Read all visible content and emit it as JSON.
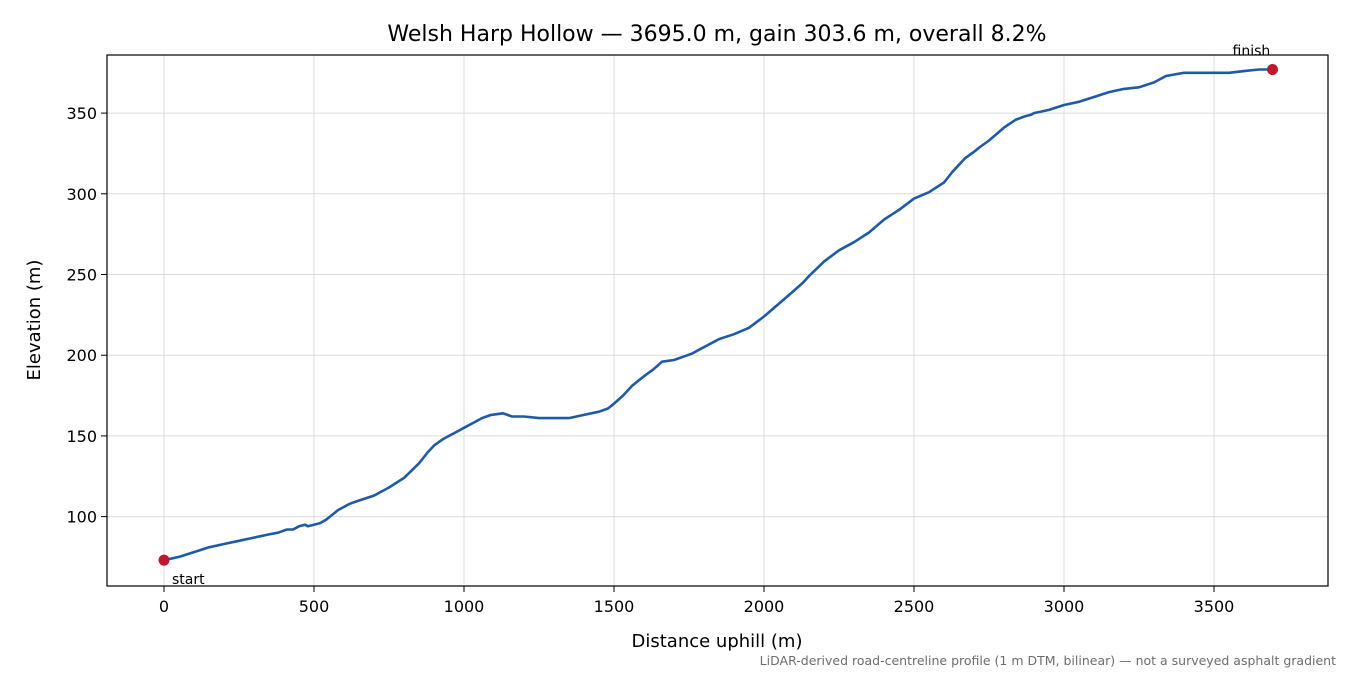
{
  "chart_data": {
    "type": "line",
    "title": "Welsh Harp Hollow — 3695.0 m, gain 303.6 m, overall 8.2%",
    "xlabel": "Distance uphill (m)",
    "ylabel": "Elevation (m)",
    "xlim": [
      -190,
      3880
    ],
    "ylim": [
      57,
      386
    ],
    "xticks": [
      0,
      500,
      1000,
      1500,
      2000,
      2500,
      3000,
      3500
    ],
    "yticks": [
      100,
      150,
      200,
      250,
      300,
      350
    ],
    "grid": true,
    "line_color": "#1f5aa8",
    "marker_color": "#c0172a",
    "series": [
      {
        "x": [
          0,
          50,
          100,
          150,
          200,
          250,
          300,
          350,
          380,
          410,
          430,
          450,
          470,
          480,
          500,
          520,
          540,
          560,
          580,
          600,
          620,
          650,
          700,
          750,
          800,
          850,
          880,
          900,
          930,
          950,
          980,
          1000,
          1030,
          1060,
          1090,
          1130,
          1145,
          1160,
          1200,
          1250,
          1300,
          1350,
          1400,
          1450,
          1480,
          1500,
          1530,
          1560,
          1600,
          1630,
          1660,
          1700,
          1730,
          1760,
          1790,
          1800,
          1830,
          1850,
          1900,
          1950,
          2000,
          2050,
          2100,
          2130,
          2150,
          2200,
          2250,
          2300,
          2350,
          2400,
          2450,
          2500,
          2550,
          2600,
          2630,
          2650,
          2670,
          2700,
          2720,
          2750,
          2800,
          2840,
          2870,
          2890,
          2900,
          2950,
          3000,
          3050,
          3100,
          3150,
          3200,
          3250,
          3300,
          3340,
          3370,
          3400,
          3450,
          3500,
          3550,
          3600,
          3650,
          3695
        ],
        "y": [
          73,
          75,
          78,
          81,
          83,
          85,
          87,
          89,
          90,
          92,
          92,
          94,
          95,
          94,
          95,
          96,
          98,
          101,
          104,
          106,
          108,
          110,
          113,
          118,
          124,
          133,
          140,
          144,
          148,
          150,
          153,
          155,
          158,
          161,
          163,
          164,
          163,
          162,
          162,
          161,
          161,
          161,
          163,
          165,
          167,
          170,
          175,
          181,
          187,
          191,
          196,
          197,
          199,
          201,
          204,
          205,
          208,
          210,
          213,
          217,
          224,
          232,
          240,
          245,
          249,
          258,
          265,
          270,
          276,
          284,
          290,
          297,
          301,
          307,
          314,
          318,
          322,
          326,
          329,
          333,
          341,
          346,
          348,
          349,
          350,
          352,
          355,
          357,
          360,
          363,
          365,
          366,
          369,
          373,
          374,
          375,
          375,
          375,
          375,
          376,
          377,
          377
        ]
      }
    ],
    "annotations": [
      {
        "text": "start",
        "x": 0,
        "y": 73
      },
      {
        "text": "finish",
        "x": 3695,
        "y": 377
      }
    ],
    "footnote": "LiDAR-derived road-centreline profile (1 m DTM, bilinear) — not a surveyed asphalt gradient"
  }
}
